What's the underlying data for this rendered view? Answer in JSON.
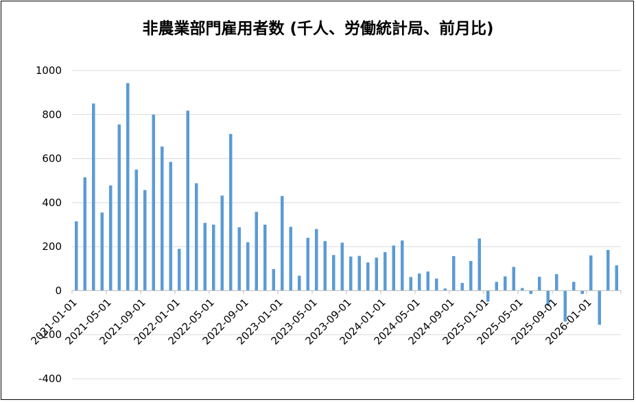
{
  "chart_data": {
    "type": "bar",
    "title": "非農業部門雇用者数 (千人、労働統計局、前月比)",
    "xlabel": "",
    "ylabel": "",
    "ylim": [
      -400,
      1000
    ],
    "yticks": [
      -400,
      -200,
      0,
      200,
      400,
      600,
      800,
      1000
    ],
    "grid": true,
    "legend": "none",
    "bar_color": "#5B9BD5",
    "start_month": "2021-01",
    "xtick_labels": [
      "2021-01-01",
      "2021-05-01",
      "2021-09-01",
      "2022-01-01",
      "2022-05-01",
      "2022-09-01",
      "2023-01-01",
      "2023-05-01",
      "2023-09-01",
      "2024-01-01",
      "2024-05-01",
      "2024-09-01",
      "2025-01-01",
      "2025-05-01",
      "2025-09-01",
      "2026-01-01"
    ],
    "values": [
      315,
      515,
      850,
      355,
      478,
      755,
      943,
      550,
      457,
      800,
      655,
      585,
      190,
      818,
      488,
      308,
      300,
      432,
      712,
      288,
      220,
      358,
      300,
      98,
      430,
      290,
      68,
      240,
      280,
      225,
      162,
      218,
      155,
      158,
      128,
      150,
      175,
      205,
      228,
      62,
      78,
      87,
      55,
      10,
      157,
      35,
      135,
      237,
      -50,
      40,
      65,
      108,
      12,
      -15,
      63,
      -70,
      75,
      -140,
      40,
      -15,
      160,
      -155,
      185,
      115
    ]
  }
}
